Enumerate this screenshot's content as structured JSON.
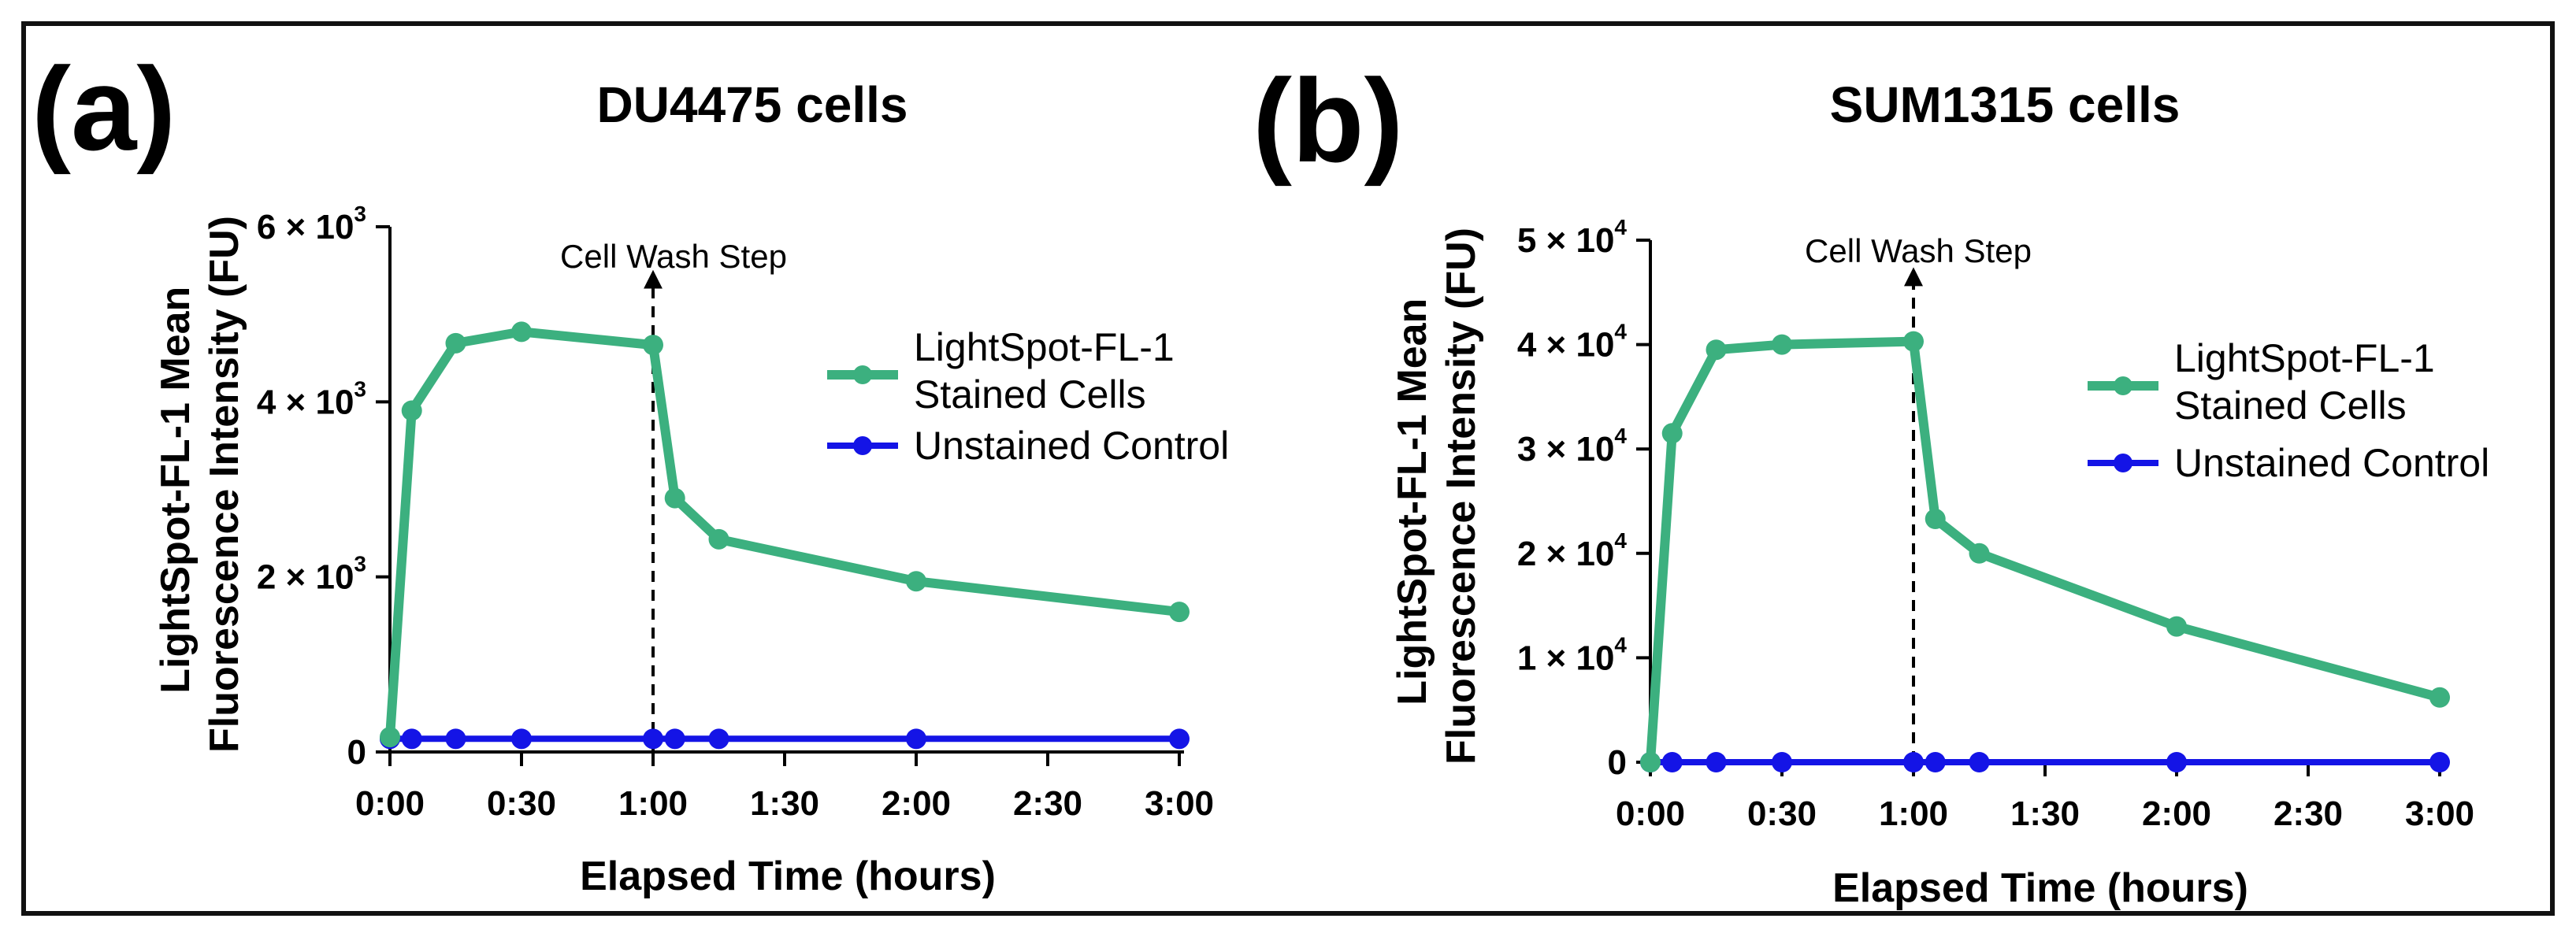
{
  "chart_data": [
    {
      "panel_label": "(a)",
      "type": "line",
      "title": "DU4475 cells",
      "xlabel": "Elapsed Time (hours)",
      "ylabel_lines": [
        "LightSpot-FL-1 Mean",
        "Fluorescence Intensity (FU)"
      ],
      "x_unit": "hours",
      "xlim": [
        0,
        3
      ],
      "ylim": [
        0,
        6000
      ],
      "x_ticks": [
        {
          "value": 0,
          "label": "0:00"
        },
        {
          "value": 0.5,
          "label": "0:30"
        },
        {
          "value": 1,
          "label": "1:00"
        },
        {
          "value": 1.5,
          "label": "1:30"
        },
        {
          "value": 2,
          "label": "2:00"
        },
        {
          "value": 2.5,
          "label": "2:30"
        },
        {
          "value": 3,
          "label": "3:00"
        }
      ],
      "y_ticks": [
        {
          "value": 0,
          "mant": "0",
          "exp": ""
        },
        {
          "value": 2000,
          "mant": "2 × 10",
          "exp": "3"
        },
        {
          "value": 4000,
          "mant": "4 × 10",
          "exp": "3"
        },
        {
          "value": 6000,
          "mant": "6 × 10",
          "exp": "3"
        }
      ],
      "series": [
        {
          "name_lines": [
            "LightSpot-FL-1",
            "Stained Cells"
          ],
          "color": "#3cb07f",
          "x": [
            0,
            0.083,
            0.25,
            0.5,
            1.0,
            1.083,
            1.25,
            2.0,
            3.0
          ],
          "values": [
            170,
            3900,
            4670,
            4800,
            4650,
            2900,
            2430,
            1950,
            1600
          ]
        },
        {
          "name_lines": [
            "Unstained Control"
          ],
          "color": "#1414e6",
          "x": [
            0,
            0.083,
            0.25,
            0.5,
            1.0,
            1.083,
            1.25,
            2.0,
            3.0
          ],
          "values": [
            150,
            150,
            150,
            150,
            150,
            150,
            150,
            150,
            150
          ]
        }
      ],
      "annotation": {
        "text": "Cell Wash Step",
        "x": 1.0,
        "from_y": 0,
        "to_y": 5400
      }
    },
    {
      "panel_label": "(b)",
      "type": "line",
      "title": "SUM1315 cells",
      "xlabel": "Elapsed Time (hours)",
      "ylabel_lines": [
        "LightSpot-FL-1 Mean",
        "Fluorescence Intensity (FU)"
      ],
      "x_unit": "hours",
      "xlim": [
        0,
        3
      ],
      "ylim": [
        0,
        50000
      ],
      "x_ticks": [
        {
          "value": 0,
          "label": "0:00"
        },
        {
          "value": 0.5,
          "label": "0:30"
        },
        {
          "value": 1,
          "label": "1:00"
        },
        {
          "value": 1.5,
          "label": "1:30"
        },
        {
          "value": 2,
          "label": "2:00"
        },
        {
          "value": 2.5,
          "label": "2:30"
        },
        {
          "value": 3,
          "label": "3:00"
        }
      ],
      "y_ticks": [
        {
          "value": 0,
          "mant": "0",
          "exp": ""
        },
        {
          "value": 10000,
          "mant": "1 × 10",
          "exp": "4"
        },
        {
          "value": 20000,
          "mant": "2 × 10",
          "exp": "4"
        },
        {
          "value": 30000,
          "mant": "3 × 10",
          "exp": "4"
        },
        {
          "value": 40000,
          "mant": "4 × 10",
          "exp": "4"
        },
        {
          "value": 50000,
          "mant": "5 × 10",
          "exp": "4"
        }
      ],
      "series": [
        {
          "name_lines": [
            "LightSpot-FL-1",
            "Stained Cells"
          ],
          "color": "#3cb07f",
          "x": [
            0,
            0.083,
            0.25,
            0.5,
            1.0,
            1.083,
            1.25,
            2.0,
            3.0
          ],
          "values": [
            0,
            31500,
            39500,
            40000,
            40300,
            23300,
            20000,
            13000,
            6200
          ]
        },
        {
          "name_lines": [
            "Unstained Control"
          ],
          "color": "#1414e6",
          "x": [
            0,
            0.083,
            0.25,
            0.5,
            1.0,
            1.083,
            1.25,
            2.0,
            3.0
          ],
          "values": [
            0,
            0,
            0,
            0,
            0,
            0,
            0,
            0,
            0
          ]
        }
      ],
      "annotation": {
        "text": "Cell Wash Step",
        "x": 1.0,
        "from_y": 0,
        "to_y": 46500
      }
    }
  ]
}
